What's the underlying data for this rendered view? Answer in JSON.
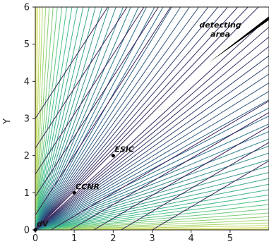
{
  "chart_data": {
    "type": "contour",
    "xlabel": "",
    "ylabel": "Y",
    "xlim": [
      0,
      6
    ],
    "ylim": [
      0,
      6
    ],
    "x_ticks": [
      "0",
      "1",
      "2",
      "3",
      "4",
      "5"
    ],
    "y_ticks": [
      "0",
      "1",
      "2",
      "3",
      "4",
      "5",
      "6"
    ],
    "contour_field": "x - y",
    "points": [
      {
        "label": "dV",
        "x": 0,
        "y": 0
      },
      {
        "label": "CCNR",
        "x": 1,
        "y": 1
      },
      {
        "label": "ESIC",
        "x": 2,
        "y": 2
      }
    ],
    "detecting_area": {
      "label": "detecting area",
      "wedge": [
        [
          4.45,
          4.5
        ],
        [
          6.0,
          5.65
        ],
        [
          6.0,
          5.75
        ]
      ]
    },
    "colors": {
      "line": "#3b1f5a",
      "fill_low": "#2a6f8f",
      "fill_mid": "#3fbf8a",
      "fill_high": "#f0e552",
      "detecting_area": "#000000"
    }
  }
}
